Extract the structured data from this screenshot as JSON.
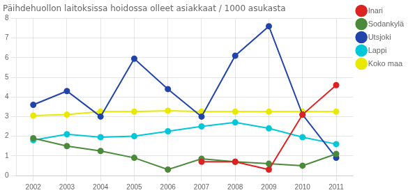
{
  "chart_data": {
    "type": "line",
    "title": "Päihdehuollon laitoksissa hoidossa olleet asiakkaat / 1000 asukasta",
    "x": [
      2002,
      2003,
      2004,
      2005,
      2006,
      2007,
      2008,
      2009,
      2010,
      2011
    ],
    "series": [
      {
        "name": "Inari",
        "color": "#dd2222",
        "values": [
          null,
          null,
          null,
          null,
          null,
          0.7,
          0.7,
          0.3,
          3.1,
          4.6
        ]
      },
      {
        "name": "Sodankylä",
        "color": "#4a8a3a",
        "values": [
          1.9,
          1.5,
          1.25,
          0.9,
          0.3,
          0.85,
          0.7,
          0.6,
          0.5,
          1.1
        ]
      },
      {
        "name": "Utsjoki",
        "color": "#2244aa",
        "values": [
          3.6,
          4.3,
          3.0,
          5.95,
          4.4,
          3.0,
          6.1,
          7.6,
          3.1,
          0.9
        ]
      },
      {
        "name": "Lappi",
        "color": "#00c8d8",
        "values": [
          1.8,
          2.1,
          1.95,
          2.0,
          2.25,
          2.5,
          2.7,
          2.4,
          1.95,
          1.6
        ]
      },
      {
        "name": "Koko maa",
        "color": "#e8e800",
        "values": [
          3.05,
          3.1,
          3.25,
          3.25,
          3.3,
          3.25,
          3.25,
          3.25,
          3.25,
          3.25
        ]
      }
    ],
    "xlim": [
      2001.5,
      2011.5
    ],
    "xticks": [
      2002,
      2003,
      2004,
      2005,
      2006,
      2007,
      2008,
      2009,
      2010,
      2011
    ],
    "ylim": [
      0,
      8
    ],
    "yticks": [
      0,
      1,
      2,
      3,
      4,
      5,
      6,
      7,
      8
    ],
    "grid": true,
    "legend": "right",
    "marker": "circle"
  }
}
